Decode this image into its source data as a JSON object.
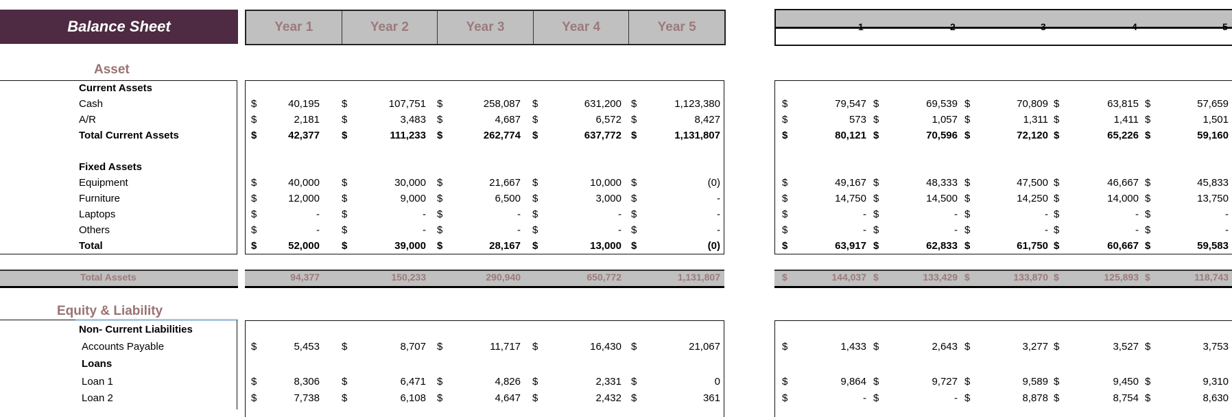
{
  "title": "Balance Sheet",
  "years": [
    "Year 1",
    "Year 2",
    "Year 3",
    "Year 4",
    "Year 5"
  ],
  "right_header_numbers": [
    "1",
    "2",
    "3",
    "4",
    "5"
  ],
  "sections": {
    "asset": "Asset",
    "equity": "Equity & Liability"
  },
  "currency": "$",
  "asset_rows": [
    {
      "label": "Current Assets",
      "bold": true,
      "left": null,
      "right": null
    },
    {
      "label": "Cash",
      "bold": false,
      "left": [
        "40,195",
        "107,751",
        "258,087",
        "631,200",
        "1,123,380"
      ],
      "right": [
        "79,547",
        "69,539",
        "70,809",
        "63,815",
        "57,659"
      ]
    },
    {
      "label": "A/R",
      "bold": false,
      "left": [
        "2,181",
        "3,483",
        "4,687",
        "6,572",
        "8,427"
      ],
      "right": [
        "573",
        "1,057",
        "1,311",
        "1,411",
        "1,501"
      ]
    },
    {
      "label": "Total Current Assets",
      "bold": true,
      "left": [
        "42,377",
        "111,233",
        "262,774",
        "637,772",
        "1,131,807"
      ],
      "right": [
        "80,121",
        "70,596",
        "72,120",
        "65,226",
        "59,160"
      ]
    },
    {
      "label": "",
      "bold": false,
      "left": null,
      "right": null
    },
    {
      "label": "Fixed Assets",
      "bold": true,
      "left": null,
      "right": null
    },
    {
      "label": "Equipment",
      "bold": false,
      "left": [
        "40,000",
        "30,000",
        "21,667",
        "10,000",
        "(0)"
      ],
      "right": [
        "49,167",
        "48,333",
        "47,500",
        "46,667",
        "45,833"
      ]
    },
    {
      "label": "Furniture",
      "bold": false,
      "left": [
        "12,000",
        "9,000",
        "6,500",
        "3,000",
        "-"
      ],
      "right": [
        "14,750",
        "14,500",
        "14,250",
        "14,000",
        "13,750"
      ]
    },
    {
      "label": "Laptops",
      "bold": false,
      "left": [
        "-",
        "-",
        "-",
        "-",
        "-"
      ],
      "right": [
        "-",
        "-",
        "-",
        "-",
        "-"
      ]
    },
    {
      "label": "Others",
      "bold": false,
      "left": [
        "-",
        "-",
        "-",
        "-",
        "-"
      ],
      "right": [
        "-",
        "-",
        "-",
        "-",
        "-"
      ]
    },
    {
      "label": "Total",
      "bold": true,
      "left": [
        "52,000",
        "39,000",
        "28,167",
        "13,000",
        "(0)"
      ],
      "right": [
        "63,917",
        "62,833",
        "61,750",
        "60,667",
        "59,583"
      ]
    }
  ],
  "total_assets": {
    "label": "Total Assets",
    "left": [
      "94,377",
      "150,233",
      "290,940",
      "650,772",
      "1,131,807"
    ],
    "right": [
      "144,037",
      "133,429",
      "133,870",
      "125,893",
      "118,743"
    ]
  },
  "equity_rows": [
    {
      "label": "Non- Current Liabilities",
      "bold": true,
      "indent": 0,
      "left": null,
      "right": null
    },
    {
      "label": "Accounts Payable",
      "bold": false,
      "indent": 1,
      "left": [
        "5,453",
        "8,707",
        "11,717",
        "16,430",
        "21,067"
      ],
      "right": [
        "1,433",
        "2,643",
        "3,277",
        "3,527",
        "3,753"
      ]
    },
    {
      "label": "Loans",
      "bold": true,
      "indent": 1,
      "left": null,
      "right": null
    },
    {
      "label": "Loan 1",
      "bold": false,
      "indent": 1,
      "left": [
        "8,306",
        "6,471",
        "4,826",
        "2,331",
        "0"
      ],
      "right": [
        "9,864",
        "9,727",
        "9,589",
        "9,450",
        "9,310"
      ]
    },
    {
      "label": "Loan 2",
      "bold": false,
      "indent": 1,
      "left": [
        "7,738",
        "6,108",
        "4,647",
        "2,432",
        "361"
      ],
      "right": [
        "-",
        "-",
        "8,878",
        "8,754",
        "8,630"
      ]
    }
  ],
  "colors": {
    "title_bg": "#4E2B42",
    "header_bg": "#C0C0C0",
    "heading_text": "#9A7272"
  }
}
